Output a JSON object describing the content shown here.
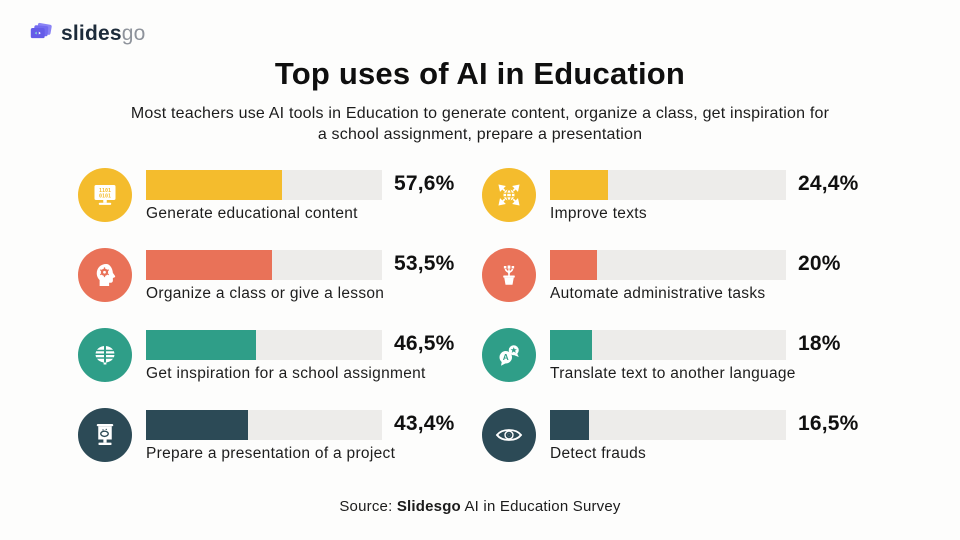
{
  "logo": {
    "brand_bold": "slides",
    "brand_light": "go",
    "purple": "#655ce8"
  },
  "header": {
    "title": "Top uses of AI in Education",
    "subtitle": "Most teachers use AI tools in Education to generate content, organize a class, get inspiration for a school assignment, prepare a presentation"
  },
  "colors": {
    "yellow": "#f4bc2d",
    "coral": "#e97258",
    "teal": "#2f9e88",
    "navy": "#2c4a56",
    "track": "#edecea"
  },
  "items": [
    {
      "label": "Generate educational content",
      "value": 57.6,
      "value_label": "57,6%",
      "color": "#f4bc2d",
      "icon": "computer-binary-icon"
    },
    {
      "label": "Organize a class or give a lesson",
      "value": 53.5,
      "value_label": "53,5%",
      "color": "#e97258",
      "icon": "head-gear-icon"
    },
    {
      "label": "Get inspiration for a school assignment",
      "value": 46.5,
      "value_label": "46,5%",
      "color": "#2f9e88",
      "icon": "brain-icon"
    },
    {
      "label": "Prepare a presentation of a project",
      "value": 43.4,
      "value_label": "43,4%",
      "color": "#2c4a56",
      "icon": "presentation-board-icon"
    },
    {
      "label": "Improve texts",
      "value": 24.4,
      "value_label": "24,4%",
      "color": "#f4bc2d",
      "icon": "globe-arrows-icon"
    },
    {
      "label": "Automate administrative tasks",
      "value": 20,
      "value_label": "20%",
      "color": "#e97258",
      "icon": "plant-pot-icon"
    },
    {
      "label": "Translate text to another language",
      "value": 18,
      "value_label": "18%",
      "color": "#2f9e88",
      "icon": "translate-icon"
    },
    {
      "label": "Detect frauds",
      "value": 16.5,
      "value_label": "16,5%",
      "color": "#2c4a56",
      "icon": "eye-icon"
    }
  ],
  "chart_data": {
    "type": "bar",
    "orientation": "horizontal",
    "title": "Top uses of AI in Education",
    "subtitle": "Most teachers use AI tools in Education to generate content, organize a class, get inspiration for a school assignment, prepare a presentation",
    "categories": [
      "Generate educational content",
      "Organize a class or give a lesson",
      "Get inspiration for a school assignment",
      "Prepare a presentation of a project",
      "Improve texts",
      "Automate administrative tasks",
      "Translate text to another language",
      "Detect frauds"
    ],
    "values": [
      57.6,
      53.5,
      46.5,
      43.4,
      24.4,
      20,
      18,
      16.5
    ],
    "value_labels": [
      "57,6%",
      "53,5%",
      "46,5%",
      "43,4%",
      "24,4%",
      "20%",
      "18%",
      "16,5%"
    ],
    "bar_colors": [
      "#f4bc2d",
      "#e97258",
      "#2f9e88",
      "#2c4a56",
      "#f4bc2d",
      "#e97258",
      "#2f9e88",
      "#2c4a56"
    ],
    "unit": "%",
    "xlim": [
      0,
      100
    ],
    "grid": false,
    "legend": false,
    "layout": "two-column, 4 rows per column, icon + bar + value + label"
  },
  "footer": {
    "prefix": "Source: ",
    "bold": "Slidesgo",
    "suffix": " AI in Education Survey"
  }
}
